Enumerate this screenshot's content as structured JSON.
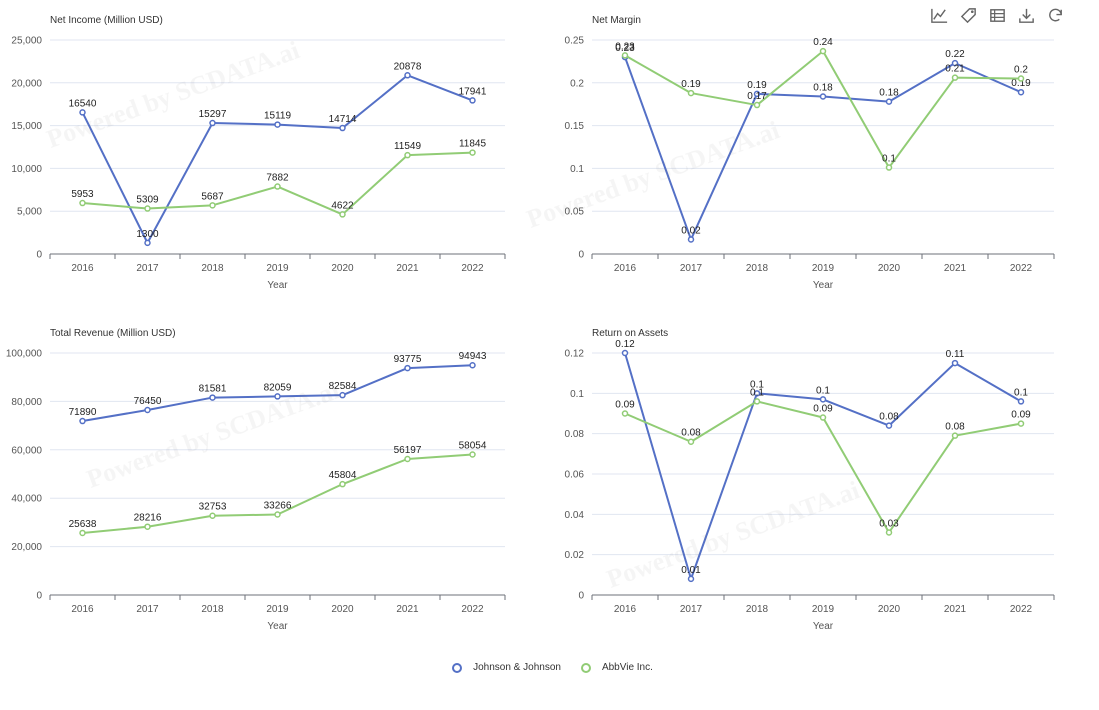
{
  "toolbar": {
    "icons": [
      "line-chart-icon",
      "tag-icon",
      "data-table-icon",
      "download-icon",
      "refresh-icon"
    ]
  },
  "legend": [
    {
      "name": "Johnson & Johnson",
      "color": "#5470c6"
    },
    {
      "name": "AbbVie Inc.",
      "color": "#91cc75"
    }
  ],
  "watermark": "Powered by SCDATA.ai",
  "chart_data": [
    {
      "type": "line",
      "title": "Net Income (Million USD)",
      "xlabel": "Year",
      "categories": [
        "2016",
        "2017",
        "2018",
        "2019",
        "2020",
        "2021",
        "2022"
      ],
      "ylim": [
        0,
        25000
      ],
      "yticks": [
        0,
        5000,
        10000,
        15000,
        20000,
        25000
      ],
      "ytick_labels": [
        "0",
        "5,000",
        "10,000",
        "15,000",
        "20,000",
        "25,000"
      ],
      "series": [
        {
          "name": "Johnson & Johnson",
          "values": [
            16540,
            1300,
            15297,
            15119,
            14714,
            20878,
            17941
          ],
          "labels": [
            "16540",
            "1300",
            "15297",
            "15119",
            "14714",
            "20878",
            "17941"
          ]
        },
        {
          "name": "AbbVie Inc.",
          "values": [
            5953,
            5309,
            5687,
            7882,
            4622,
            11549,
            11845
          ],
          "labels": [
            "5953",
            "5309",
            "5687",
            "7882",
            "4622",
            "11549",
            "11845"
          ]
        }
      ]
    },
    {
      "type": "line",
      "title": "Net Margin",
      "xlabel": "Year",
      "categories": [
        "2016",
        "2017",
        "2018",
        "2019",
        "2020",
        "2021",
        "2022"
      ],
      "ylim": [
        0,
        0.25
      ],
      "yticks": [
        0,
        0.05,
        0.1,
        0.15,
        0.2,
        0.25
      ],
      "ytick_labels": [
        "0",
        "0.05",
        "0.1",
        "0.15",
        "0.2",
        "0.25"
      ],
      "series": [
        {
          "name": "Johnson & Johnson",
          "values": [
            0.23,
            0.017,
            0.187,
            0.184,
            0.178,
            0.223,
            0.189
          ],
          "labels": [
            "0.23",
            "0.02",
            "0.19",
            "0.18",
            "0.18",
            "0.22",
            "0.19"
          ]
        },
        {
          "name": "AbbVie Inc.",
          "values": [
            0.232,
            0.188,
            0.174,
            0.237,
            0.101,
            0.206,
            0.205
          ],
          "labels": [
            "0.23",
            "0.19",
            "0.17",
            "0.24",
            "0.1",
            "0.21",
            "0.2"
          ]
        }
      ]
    },
    {
      "type": "line",
      "title": "Total Revenue (Million USD)",
      "xlabel": "Year",
      "categories": [
        "2016",
        "2017",
        "2018",
        "2019",
        "2020",
        "2021",
        "2022"
      ],
      "ylim": [
        0,
        100000
      ],
      "yticks": [
        0,
        20000,
        40000,
        60000,
        80000,
        100000
      ],
      "ytick_labels": [
        "0",
        "20,000",
        "40,000",
        "60,000",
        "80,000",
        "100,000"
      ],
      "series": [
        {
          "name": "Johnson & Johnson",
          "values": [
            71890,
            76450,
            81581,
            82059,
            82584,
            93775,
            94943
          ],
          "labels": [
            "71890",
            "76450",
            "81581",
            "82059",
            "82584",
            "93775",
            "94943"
          ]
        },
        {
          "name": "AbbVie Inc.",
          "values": [
            25638,
            28216,
            32753,
            33266,
            45804,
            56197,
            58054
          ],
          "labels": [
            "25638",
            "28216",
            "32753",
            "33266",
            "45804",
            "56197",
            "58054"
          ]
        }
      ]
    },
    {
      "type": "line",
      "title": "Return on Assets",
      "xlabel": "Year",
      "categories": [
        "2016",
        "2017",
        "2018",
        "2019",
        "2020",
        "2021",
        "2022"
      ],
      "ylim": [
        0,
        0.12
      ],
      "yticks": [
        0,
        0.02,
        0.04,
        0.06,
        0.08,
        0.1,
        0.12
      ],
      "ytick_labels": [
        "0",
        "0.02",
        "0.04",
        "0.06",
        "0.08",
        "0.1",
        "0.12"
      ],
      "series": [
        {
          "name": "Johnson & Johnson",
          "values": [
            0.12,
            0.008,
            0.1,
            0.097,
            0.084,
            0.115,
            0.096
          ],
          "labels": [
            "0.12",
            "0.01",
            "0.1",
            "0.1",
            "0.08",
            "0.11",
            "0.1"
          ]
        },
        {
          "name": "AbbVie Inc.",
          "values": [
            0.09,
            0.076,
            0.096,
            0.088,
            0.031,
            0.079,
            0.085
          ],
          "labels": [
            "0.09",
            "0.08",
            "0.1",
            "0.09",
            "0.03",
            "0.08",
            "0.09"
          ]
        }
      ]
    }
  ]
}
